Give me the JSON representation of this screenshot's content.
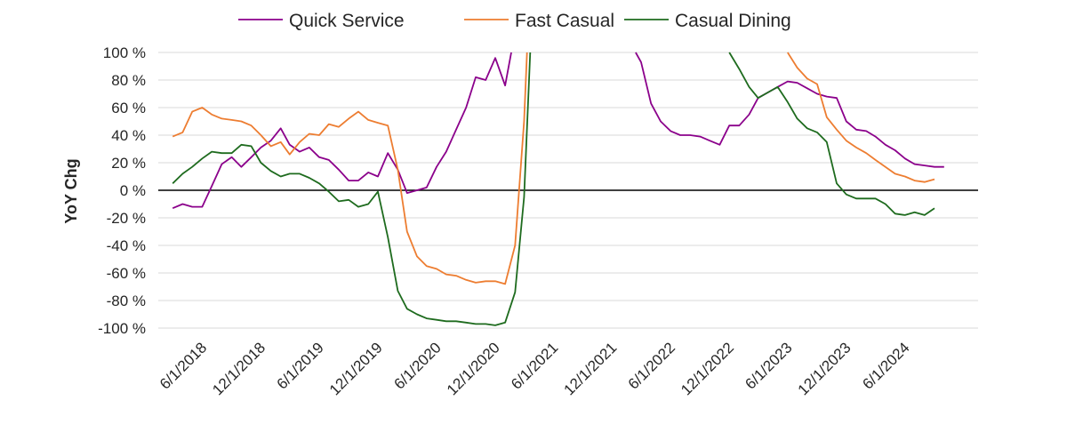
{
  "chart_data": {
    "type": "line",
    "ylabel": "YoY Chg",
    "xlabel": "",
    "ylim": [
      -100,
      100
    ],
    "y_ticks": [
      100,
      80,
      60,
      40,
      20,
      0,
      -20,
      -40,
      -60,
      -80,
      -100
    ],
    "y_tick_labels": [
      "100 %",
      "80 %",
      "60 %",
      "40 %",
      "20 %",
      "0 %",
      "-20 %",
      "-40 %",
      "-60 %",
      "-80 %",
      "-100 %"
    ],
    "x_ticks": [
      "6/1/2018",
      "12/1/2018",
      "6/1/2019",
      "12/1/2019",
      "6/1/2020",
      "12/1/2020",
      "6/1/2021",
      "12/1/2021",
      "6/1/2022",
      "12/1/2022",
      "6/1/2023",
      "12/1/2023",
      "6/1/2024"
    ],
    "grid": true,
    "legend_position": "top-center",
    "series": [
      {
        "name": "Quick Service",
        "color": "#8B008B",
        "points": [
          [
            "2018-03-01",
            -13
          ],
          [
            "2018-04-01",
            -10
          ],
          [
            "2018-05-01",
            -12
          ],
          [
            "2018-06-01",
            -12
          ],
          [
            "2018-07-01",
            3
          ],
          [
            "2018-08-01",
            19
          ],
          [
            "2018-09-01",
            24
          ],
          [
            "2018-10-01",
            17
          ],
          [
            "2018-11-01",
            24
          ],
          [
            "2018-12-01",
            31
          ],
          [
            "2019-01-01",
            36
          ],
          [
            "2019-02-01",
            45
          ],
          [
            "2019-03-01",
            33
          ],
          [
            "2019-04-01",
            28
          ],
          [
            "2019-05-01",
            31
          ],
          [
            "2019-06-01",
            24
          ],
          [
            "2019-07-01",
            22
          ],
          [
            "2019-08-01",
            15
          ],
          [
            "2019-09-01",
            7
          ],
          [
            "2019-10-01",
            7
          ],
          [
            "2019-11-01",
            13
          ],
          [
            "2019-12-01",
            10
          ],
          [
            "2020-01-01",
            27
          ],
          [
            "2020-02-01",
            15
          ],
          [
            "2020-03-01",
            -2
          ],
          [
            "2020-04-01",
            0
          ],
          [
            "2020-05-01",
            2
          ],
          [
            "2020-06-01",
            17
          ],
          [
            "2020-07-01",
            28
          ],
          [
            "2020-08-01",
            44
          ],
          [
            "2020-09-01",
            60
          ],
          [
            "2020-10-01",
            82
          ],
          [
            "2020-11-01",
            80
          ],
          [
            "2020-12-01",
            96
          ],
          [
            "2021-01-01",
            76
          ],
          [
            "2021-01-20",
            100
          ],
          null,
          [
            "2022-02-12",
            100
          ],
          [
            "2022-03-01",
            93
          ],
          [
            "2022-04-01",
            63
          ],
          [
            "2022-05-01",
            50
          ],
          [
            "2022-06-01",
            43
          ],
          [
            "2022-07-01",
            40
          ],
          [
            "2022-08-01",
            40
          ],
          [
            "2022-09-01",
            39
          ],
          [
            "2022-10-01",
            36
          ],
          [
            "2022-11-01",
            33
          ],
          [
            "2022-12-01",
            47
          ],
          [
            "2023-01-01",
            47
          ],
          [
            "2023-02-01",
            55
          ],
          [
            "2023-03-01",
            67
          ],
          [
            "2023-04-01",
            71
          ],
          [
            "2023-05-01",
            75
          ],
          [
            "2023-06-01",
            79
          ],
          [
            "2023-07-01",
            78
          ],
          [
            "2023-08-01",
            74
          ],
          [
            "2023-09-01",
            70
          ],
          [
            "2023-10-01",
            68
          ],
          [
            "2023-11-01",
            67
          ],
          [
            "2023-12-01",
            50
          ],
          [
            "2024-01-01",
            44
          ],
          [
            "2024-02-01",
            43
          ],
          [
            "2024-03-01",
            39
          ],
          [
            "2024-04-01",
            33
          ],
          [
            "2024-05-01",
            29
          ],
          [
            "2024-06-01",
            23
          ],
          [
            "2024-07-01",
            19
          ],
          [
            "2024-08-01",
            18
          ],
          [
            "2024-09-01",
            17
          ],
          [
            "2024-10-01",
            17
          ]
        ]
      },
      {
        "name": "Fast Casual",
        "color": "#ED7D31",
        "points": [
          [
            "2018-03-01",
            39
          ],
          [
            "2018-04-01",
            42
          ],
          [
            "2018-05-01",
            57
          ],
          [
            "2018-06-01",
            60
          ],
          [
            "2018-07-01",
            55
          ],
          [
            "2018-08-01",
            52
          ],
          [
            "2018-09-01",
            51
          ],
          [
            "2018-10-01",
            50
          ],
          [
            "2018-11-01",
            47
          ],
          [
            "2018-12-01",
            40
          ],
          [
            "2019-01-01",
            32
          ],
          [
            "2019-02-01",
            35
          ],
          [
            "2019-03-01",
            26
          ],
          [
            "2019-04-01",
            35
          ],
          [
            "2019-05-01",
            41
          ],
          [
            "2019-06-01",
            40
          ],
          [
            "2019-07-01",
            48
          ],
          [
            "2019-08-01",
            46
          ],
          [
            "2019-09-01",
            52
          ],
          [
            "2019-10-01",
            57
          ],
          [
            "2019-11-01",
            51
          ],
          [
            "2019-12-01",
            49
          ],
          [
            "2020-01-01",
            47
          ],
          [
            "2020-02-01",
            15
          ],
          [
            "2020-03-01",
            -30
          ],
          [
            "2020-04-01",
            -48
          ],
          [
            "2020-05-01",
            -55
          ],
          [
            "2020-06-01",
            -57
          ],
          [
            "2020-07-01",
            -61
          ],
          [
            "2020-08-01",
            -62
          ],
          [
            "2020-09-01",
            -65
          ],
          [
            "2020-10-01",
            -67
          ],
          [
            "2020-11-01",
            -66
          ],
          [
            "2020-12-01",
            -66
          ],
          [
            "2021-01-01",
            -68
          ],
          [
            "2021-02-01",
            -40
          ],
          [
            "2021-03-01",
            50
          ],
          [
            "2021-03-10",
            100
          ],
          null,
          [
            "2023-06-01",
            100
          ],
          [
            "2023-07-01",
            89
          ],
          [
            "2023-08-01",
            81
          ],
          [
            "2023-09-01",
            77
          ],
          [
            "2023-10-01",
            53
          ],
          [
            "2023-11-01",
            44
          ],
          [
            "2023-12-01",
            36
          ],
          [
            "2024-01-01",
            31
          ],
          [
            "2024-02-01",
            27
          ],
          [
            "2024-03-01",
            22
          ],
          [
            "2024-04-01",
            17
          ],
          [
            "2024-05-01",
            12
          ],
          [
            "2024-06-01",
            10
          ],
          [
            "2024-07-01",
            7
          ],
          [
            "2024-08-01",
            6
          ],
          [
            "2024-09-01",
            8
          ]
        ]
      },
      {
        "name": "Casual Dining",
        "color": "#1E6B1E",
        "points": [
          [
            "2018-03-01",
            5
          ],
          [
            "2018-04-01",
            12
          ],
          [
            "2018-05-01",
            17
          ],
          [
            "2018-06-01",
            23
          ],
          [
            "2018-07-01",
            28
          ],
          [
            "2018-08-01",
            27
          ],
          [
            "2018-09-01",
            27
          ],
          [
            "2018-10-01",
            33
          ],
          [
            "2018-11-01",
            32
          ],
          [
            "2018-12-01",
            20
          ],
          [
            "2019-01-01",
            14
          ],
          [
            "2019-02-01",
            10
          ],
          [
            "2019-03-01",
            12
          ],
          [
            "2019-04-01",
            12
          ],
          [
            "2019-05-01",
            9
          ],
          [
            "2019-06-01",
            5
          ],
          [
            "2019-07-01",
            -1
          ],
          [
            "2019-08-01",
            -8
          ],
          [
            "2019-09-01",
            -7
          ],
          [
            "2019-10-01",
            -12
          ],
          [
            "2019-11-01",
            -10
          ],
          [
            "2019-12-01",
            -1
          ],
          [
            "2020-01-01",
            -34
          ],
          [
            "2020-02-01",
            -73
          ],
          [
            "2020-03-01",
            -86
          ],
          [
            "2020-04-01",
            -90
          ],
          [
            "2020-05-01",
            -93
          ],
          [
            "2020-06-01",
            -94
          ],
          [
            "2020-07-01",
            -95
          ],
          [
            "2020-08-01",
            -95
          ],
          [
            "2020-09-01",
            -96
          ],
          [
            "2020-10-01",
            -97
          ],
          [
            "2020-11-01",
            -97
          ],
          [
            "2020-12-01",
            -98
          ],
          [
            "2021-01-01",
            -96
          ],
          [
            "2021-02-01",
            -74
          ],
          [
            "2021-03-01",
            -5
          ],
          [
            "2021-03-20",
            100
          ],
          null,
          [
            "2022-12-01",
            100
          ],
          [
            "2023-01-01",
            88
          ],
          [
            "2023-02-01",
            75
          ],
          [
            "2023-03-01",
            67
          ],
          [
            "2023-04-01",
            71
          ],
          [
            "2023-05-01",
            75
          ],
          [
            "2023-06-01",
            64
          ],
          [
            "2023-07-01",
            52
          ],
          [
            "2023-08-01",
            45
          ],
          [
            "2023-09-01",
            42
          ],
          [
            "2023-10-01",
            35
          ],
          [
            "2023-11-01",
            5
          ],
          [
            "2023-12-01",
            -3
          ],
          [
            "2024-01-01",
            -6
          ],
          [
            "2024-02-01",
            -6
          ],
          [
            "2024-03-01",
            -6
          ],
          [
            "2024-04-01",
            -10
          ],
          [
            "2024-05-01",
            -17
          ],
          [
            "2024-06-01",
            -18
          ],
          [
            "2024-07-01",
            -16
          ],
          [
            "2024-08-01",
            -18
          ],
          [
            "2024-09-01",
            -13
          ]
        ]
      }
    ]
  }
}
